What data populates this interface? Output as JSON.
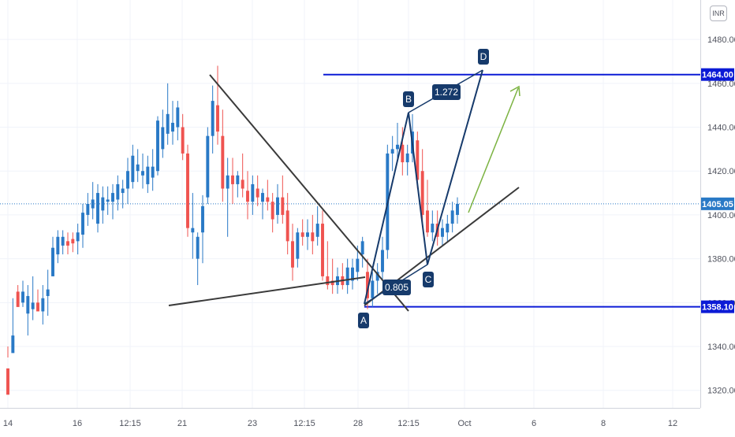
{
  "currency": "INR",
  "chart_data": {
    "type": "candlestick",
    "y_ticks": [
      "1480.00",
      "1460.00",
      "1440.00",
      "1420.00",
      "1400.00",
      "1380.00",
      "1360.00",
      "1340.00",
      "1320.00"
    ],
    "ylim": [
      1312,
      1498
    ],
    "x_ticks": [
      "14",
      "16",
      "12:15",
      "21",
      "23",
      "12:15",
      "28",
      "12:15",
      "Oct",
      "6",
      "8",
      "12"
    ],
    "current_price": "1405.05",
    "levels": [
      {
        "name": "upper-level",
        "price": 1464.0,
        "label": "1464.00",
        "color": "#0c1bd6"
      },
      {
        "name": "lower-level",
        "price": 1358.1,
        "label": "1358.10",
        "color": "#0c1bd6"
      }
    ],
    "pattern_points": [
      {
        "label": "A",
        "price": 1357
      },
      {
        "label": "B",
        "price": 1445
      },
      {
        "label": "C",
        "price": 1375
      },
      {
        "label": "D",
        "price": 1464
      }
    ],
    "ratios": [
      "0.805",
      "1.272"
    ],
    "colors": {
      "up": "#2979c6",
      "down": "#ef5350",
      "pattern": "#163a6b",
      "arrow": "#7cb342",
      "trendline": "#3a3a3a"
    },
    "candles": [
      [
        1330,
        1335,
        1318,
        1340
      ],
      [
        1337,
        1362,
        1345,
        1340
      ],
      [
        1365,
        1368,
        1358,
        1364
      ],
      [
        1360,
        1370,
        1365,
        1358
      ],
      [
        1355,
        1368,
        1363,
        1345
      ],
      [
        1357,
        1372,
        1360,
        1352
      ],
      [
        1360,
        1366,
        1356,
        1358
      ],
      [
        1356,
        1368,
        1362,
        1350
      ],
      [
        1363,
        1375,
        1366,
        1354
      ],
      [
        1372,
        1390,
        1385,
        1372
      ],
      [
        1382,
        1393,
        1390,
        1378
      ],
      [
        1386,
        1393,
        1390,
        1382
      ],
      [
        1388,
        1392,
        1386,
        1382
      ],
      [
        1389,
        1392,
        1387,
        1383
      ],
      [
        1388,
        1396,
        1392,
        1382
      ],
      [
        1391,
        1405,
        1401,
        1385
      ],
      [
        1400,
        1410,
        1405,
        1395
      ],
      [
        1403,
        1415,
        1407,
        1398
      ],
      [
        1396,
        1414,
        1410,
        1392
      ],
      [
        1402,
        1413,
        1408,
        1396
      ],
      [
        1406,
        1413,
        1407,
        1400
      ],
      [
        1406,
        1414,
        1410,
        1398
      ],
      [
        1407,
        1418,
        1414,
        1402
      ],
      [
        1410,
        1416,
        1412,
        1403
      ],
      [
        1412,
        1426,
        1420,
        1405
      ],
      [
        1415,
        1432,
        1427,
        1412
      ],
      [
        1420,
        1430,
        1423,
        1415
      ],
      [
        1418,
        1428,
        1420,
        1412
      ],
      [
        1414,
        1427,
        1422,
        1410
      ],
      [
        1417,
        1430,
        1422,
        1411
      ],
      [
        1420,
        1445,
        1443,
        1418
      ],
      [
        1430,
        1448,
        1440,
        1426
      ],
      [
        1437,
        1460,
        1446,
        1432
      ],
      [
        1438,
        1452,
        1442,
        1432
      ],
      [
        1440,
        1452,
        1449,
        1434
      ],
      [
        1440,
        1446,
        1428,
        1425
      ],
      [
        1428,
        1432,
        1394,
        1390
      ],
      [
        1392,
        1410,
        1394,
        1380
      ],
      [
        1380,
        1392,
        1390,
        1368
      ],
      [
        1392,
        1409,
        1404,
        1378
      ],
      [
        1408,
        1440,
        1436,
        1405
      ],
      [
        1436,
        1459,
        1452,
        1428
      ],
      [
        1450,
        1468,
        1438,
        1432
      ],
      [
        1436,
        1448,
        1412,
        1406
      ],
      [
        1412,
        1426,
        1418,
        1390
      ],
      [
        1418,
        1426,
        1414,
        1405
      ],
      [
        1414,
        1420,
        1418,
        1408
      ],
      [
        1416,
        1428,
        1412,
        1408
      ],
      [
        1411,
        1420,
        1406,
        1398
      ],
      [
        1406,
        1418,
        1414,
        1400
      ],
      [
        1412,
        1418,
        1408,
        1404
      ],
      [
        1406,
        1412,
        1410,
        1398
      ],
      [
        1408,
        1416,
        1406,
        1402
      ],
      [
        1406,
        1410,
        1398,
        1392
      ],
      [
        1400,
        1414,
        1408,
        1396
      ],
      [
        1408,
        1418,
        1400,
        1396
      ],
      [
        1402,
        1410,
        1388,
        1382
      ],
      [
        1388,
        1396,
        1376,
        1370
      ],
      [
        1380,
        1394,
        1392,
        1376
      ],
      [
        1392,
        1398,
        1390,
        1386
      ],
      [
        1390,
        1398,
        1392,
        1384
      ],
      [
        1392,
        1400,
        1388,
        1382
      ],
      [
        1390,
        1404,
        1396,
        1386
      ],
      [
        1396,
        1402,
        1372,
        1370
      ],
      [
        1372,
        1388,
        1368,
        1366
      ],
      [
        1370,
        1380,
        1368,
        1364
      ],
      [
        1368,
        1376,
        1372,
        1364
      ],
      [
        1372,
        1378,
        1368,
        1366
      ],
      [
        1368,
        1380,
        1376,
        1364
      ],
      [
        1370,
        1380,
        1376,
        1366
      ],
      [
        1374,
        1386,
        1380,
        1370
      ],
      [
        1382,
        1390,
        1388,
        1376
      ],
      [
        1374,
        1380,
        1362,
        1357
      ],
      [
        1362,
        1374,
        1370,
        1358
      ],
      [
        1370,
        1378,
        1374,
        1364
      ],
      [
        1374,
        1390,
        1384,
        1370
      ],
      [
        1384,
        1432,
        1428,
        1380
      ],
      [
        1428,
        1436,
        1430,
        1420
      ],
      [
        1430,
        1442,
        1432,
        1424
      ],
      [
        1432,
        1440,
        1424,
        1418
      ],
      [
        1424,
        1432,
        1428,
        1418
      ],
      [
        1428,
        1446,
        1438,
        1424
      ],
      [
        1434,
        1438,
        1416,
        1412
      ],
      [
        1420,
        1430,
        1400,
        1396
      ],
      [
        1402,
        1416,
        1392,
        1390
      ],
      [
        1392,
        1402,
        1396,
        1388
      ],
      [
        1396,
        1402,
        1390,
        1386
      ],
      [
        1390,
        1398,
        1394,
        1386
      ],
      [
        1392,
        1400,
        1396,
        1388
      ],
      [
        1396,
        1406,
        1402,
        1392
      ],
      [
        1400,
        1408,
        1405,
        1396
      ]
    ]
  }
}
